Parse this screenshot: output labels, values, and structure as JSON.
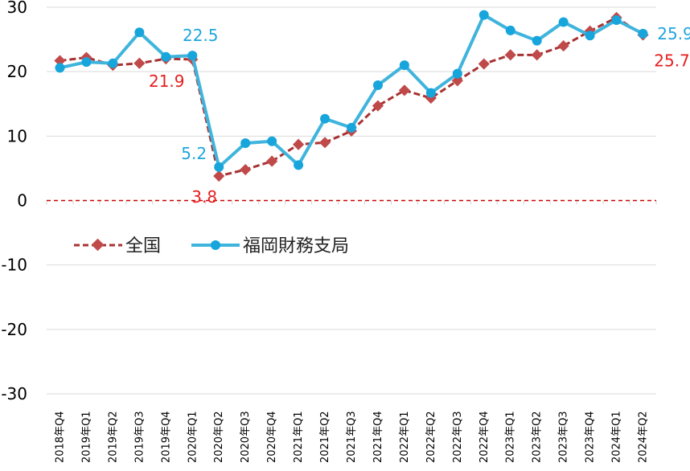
{
  "chart_data": {
    "type": "line",
    "x": [
      "2018年Q4",
      "2019年Q1",
      "2019年Q2",
      "2019年Q3",
      "2019年Q4",
      "2020年Q1",
      "2020年Q2",
      "2020年Q3",
      "2020年Q4",
      "2021年Q1",
      "2021年Q2",
      "2021年Q3",
      "2021年Q4",
      "2022年Q1",
      "2022年Q2",
      "2022年Q3",
      "2022年Q4",
      "2023年Q1",
      "2023年Q2",
      "2023年Q3",
      "2023年Q4",
      "2024年Q1",
      "2024年Q2"
    ],
    "ylim": [
      -30,
      30
    ],
    "yticks": [
      30,
      20,
      10,
      0,
      -10,
      -20,
      -30
    ],
    "grid": "horizontal",
    "legend_position": "middle-left",
    "series": [
      {
        "name": "全国",
        "color": "#a83232",
        "style": "dashed-diamond",
        "values": [
          21.7,
          22.2,
          21.0,
          21.3,
          22.0,
          21.9,
          3.8,
          4.8,
          6.1,
          8.7,
          9.0,
          10.8,
          14.7,
          17.1,
          15.9,
          18.6,
          21.2,
          22.6,
          22.6,
          24.0,
          26.3,
          28.4,
          25.7
        ]
      },
      {
        "name": "福岡財務支局",
        "color": "#3fb4dc",
        "style": "solid-circle",
        "values": [
          20.6,
          21.5,
          21.3,
          26.1,
          22.3,
          22.5,
          5.2,
          8.9,
          9.2,
          5.5,
          12.7,
          11.3,
          17.9,
          21.0,
          16.7,
          19.7,
          28.8,
          26.4,
          24.8,
          27.7,
          25.6,
          28.0,
          25.9
        ]
      }
    ],
    "annotations": [
      {
        "text": "22.5",
        "series": "福岡財務支局",
        "index": 5
      },
      {
        "text": "21.9",
        "series": "全国",
        "index": 5
      },
      {
        "text": "5.2",
        "series": "福岡財務支局",
        "index": 6
      },
      {
        "text": "3.8",
        "series": "全国",
        "index": 6
      },
      {
        "text": "25.9",
        "series": "福岡財務支局",
        "index": 22
      },
      {
        "text": "25.7",
        "series": "全国",
        "index": 22
      }
    ],
    "zero_line_color": "#cc0000"
  }
}
